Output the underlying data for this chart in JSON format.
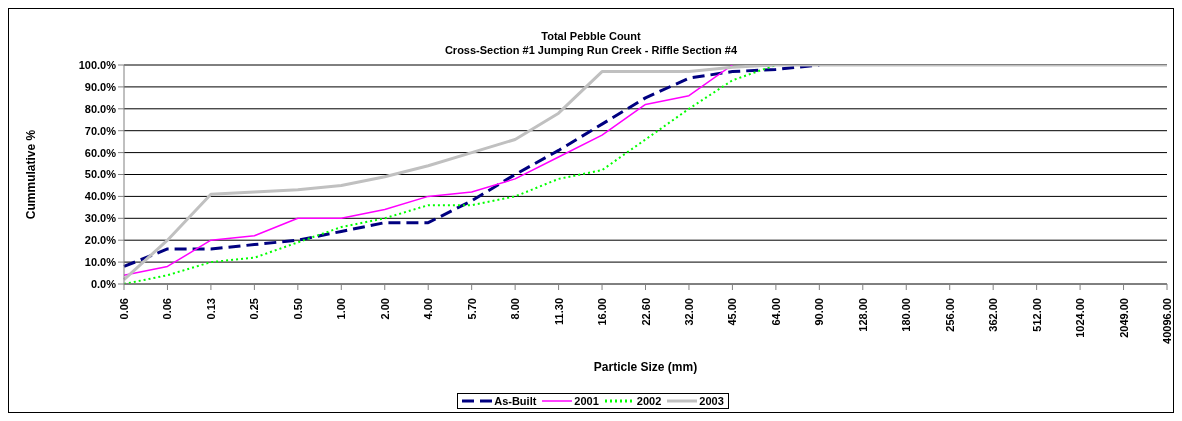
{
  "chart_data": {
    "type": "line",
    "title": "Total Pebble Count",
    "subtitle": "Cross-Section #1 Jumping Run Creek - Riffle Section #4",
    "xlabel": "Particle Size (mm)",
    "ylabel": "Cummulative %",
    "categories": [
      "0.06",
      "0.06",
      "0.13",
      "0.25",
      "0.50",
      "1.00",
      "2.00",
      "4.00",
      "5.70",
      "8.00",
      "11.30",
      "16.00",
      "22.60",
      "32.00",
      "45.00",
      "64.00",
      "90.00",
      "128.00",
      "180.00",
      "256.00",
      "362.00",
      "512.00",
      "1024.00",
      "2049.00",
      "40096.00"
    ],
    "series": [
      {
        "name": "As-Built",
        "color": "#000080",
        "line_style": "dashed",
        "values": [
          8,
          16,
          16,
          18,
          20,
          24,
          28,
          28,
          38,
          50,
          61,
          73,
          85,
          94,
          97,
          98,
          100,
          null,
          null,
          null,
          null,
          null,
          null,
          null,
          null
        ]
      },
      {
        "name": "2001",
        "color": "#ff00ff",
        "line_style": "solid",
        "values": [
          4,
          8,
          20,
          22,
          30,
          30,
          34,
          40,
          42,
          48,
          58,
          68,
          82,
          86,
          100,
          null,
          null,
          null,
          null,
          null,
          null,
          null,
          null,
          null,
          null
        ]
      },
      {
        "name": "2002",
        "color": "#00ff00",
        "line_style": "dotted",
        "values": [
          0,
          4,
          10,
          12,
          19,
          26,
          30,
          36,
          36,
          40,
          48,
          52,
          66,
          80,
          93,
          100,
          null,
          null,
          null,
          null,
          null,
          null,
          null,
          null,
          null
        ]
      },
      {
        "name": "2003",
        "color": "#c0c0c0",
        "line_style": "solid",
        "values": [
          2,
          20,
          41,
          42,
          43,
          45,
          49,
          54,
          60,
          66,
          78,
          97,
          97,
          97,
          99,
          100,
          100,
          100,
          100,
          100,
          100,
          100,
          100,
          100,
          100
        ]
      }
    ],
    "ylim": [
      0,
      100
    ],
    "yticks": [
      {
        "value": 0,
        "label": "0.0%"
      },
      {
        "value": 10,
        "label": "10.0%"
      },
      {
        "value": 20,
        "label": "20.0%"
      },
      {
        "value": 30,
        "label": "30.0%"
      },
      {
        "value": 40,
        "label": "40.0%"
      },
      {
        "value": 50,
        "label": "50.0%"
      },
      {
        "value": 60,
        "label": "60.0%"
      },
      {
        "value": 70,
        "label": "70.0%"
      },
      {
        "value": 80,
        "label": "80.0%"
      },
      {
        "value": 90,
        "label": "90.0%"
      },
      {
        "value": 100,
        "label": "100.0%"
      }
    ],
    "grid": "y",
    "legend": "bottom",
    "marker": "none"
  }
}
